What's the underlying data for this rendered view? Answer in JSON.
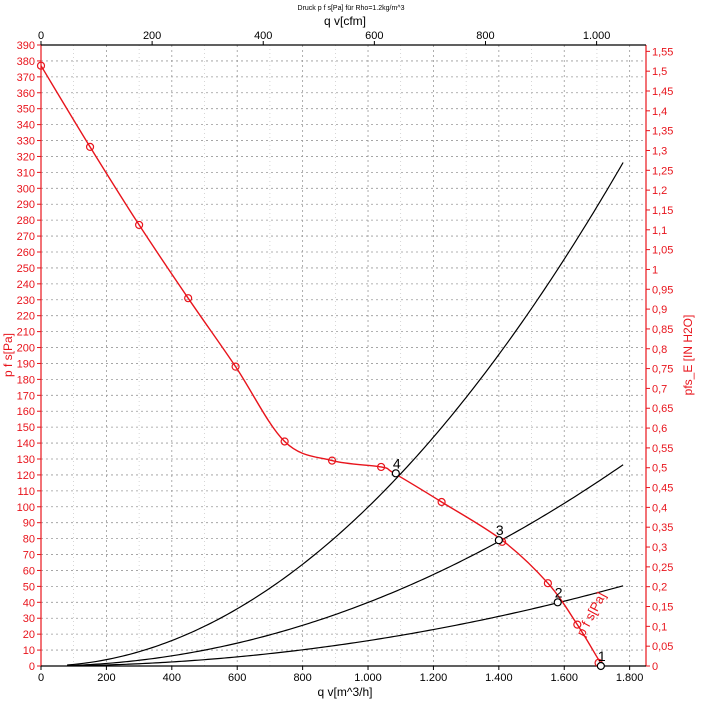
{
  "colors": {
    "primary": "#e8141c",
    "system": "#000000",
    "grid": "#999999",
    "background": "#ffffff"
  },
  "chart_data": {
    "type": "line",
    "title": "Druck p f s[Pa] für Rho=1.2kg/m^3",
    "xlabel": "q v[m^3/h]",
    "x2label": "q v[cfm]",
    "ylabel": "p  f  s[Pa]",
    "y2label": "pfs_E [IN H2O]",
    "xlim": [
      0,
      1850
    ],
    "ylim": [
      0,
      390
    ],
    "x2lim": [
      0,
      1088.9
    ],
    "y2lim": [
      0,
      1.566
    ],
    "grid": true,
    "x_ticks": [
      {
        "v": 0,
        "t": "0"
      },
      {
        "v": 200,
        "t": "200"
      },
      {
        "v": 400,
        "t": "400"
      },
      {
        "v": 600,
        "t": "600"
      },
      {
        "v": 800,
        "t": "800"
      },
      {
        "v": 1000,
        "t": "1.000"
      },
      {
        "v": 1200,
        "t": "1.200"
      },
      {
        "v": 1400,
        "t": "1.400"
      },
      {
        "v": 1600,
        "t": "1.600"
      },
      {
        "v": 1800,
        "t": "1.800"
      }
    ],
    "x2_ticks": [
      {
        "v": 0,
        "t": "0"
      },
      {
        "v": 200,
        "t": "200"
      },
      {
        "v": 400,
        "t": "400"
      },
      {
        "v": 600,
        "t": "600"
      },
      {
        "v": 800,
        "t": "800"
      },
      {
        "v": 1000,
        "t": "1.000"
      }
    ],
    "y_ticks": [
      "0",
      "10",
      "20",
      "30",
      "40",
      "50",
      "60",
      "70",
      "80",
      "90",
      "100",
      "110",
      "120",
      "130",
      "140",
      "150",
      "160",
      "170",
      "180",
      "190",
      "200",
      "210",
      "220",
      "230",
      "240",
      "250",
      "260",
      "270",
      "280",
      "290",
      "300",
      "310",
      "320",
      "330",
      "340",
      "350",
      "360",
      "370",
      "380",
      "390"
    ],
    "y2_ticks": [
      "0",
      "0,05",
      "0,1",
      "0,15",
      "0,2",
      "0,25",
      "0,3",
      "0,35",
      "0,4",
      "0,45",
      "0,5",
      "0,55",
      "0,6",
      "0,65",
      "0,7",
      "0,75",
      "0,8",
      "0,85",
      "0,9",
      "0,95",
      "1",
      "1,05",
      "1,1",
      "1,15",
      "1,2",
      "1,25",
      "1,3",
      "1,35",
      "1,4",
      "1,45",
      "1,5",
      "1,55"
    ],
    "fan_curve": {
      "name": "p  f  s[Pa]",
      "points": [
        [
          0,
          377
        ],
        [
          150,
          326
        ],
        [
          300,
          277
        ],
        [
          450,
          231
        ],
        [
          595,
          188
        ],
        [
          745,
          141
        ],
        [
          890,
          129
        ],
        [
          1040,
          125
        ],
        [
          1080,
          121
        ],
        [
          1225,
          103
        ],
        [
          1410,
          79
        ],
        [
          1550,
          52
        ],
        [
          1640,
          26
        ],
        [
          1705,
          4
        ],
        [
          1720,
          0
        ]
      ],
      "markers": [
        [
          0,
          377
        ],
        [
          150,
          326
        ],
        [
          300,
          277
        ],
        [
          450,
          231
        ],
        [
          595,
          188
        ],
        [
          745,
          141
        ],
        [
          890,
          129
        ],
        [
          1040,
          125
        ],
        [
          1225,
          103
        ],
        [
          1410,
          78
        ],
        [
          1550,
          52
        ],
        [
          1640,
          26
        ],
        [
          1705,
          2
        ]
      ]
    },
    "system_curves": [
      {
        "k": 9.98e-05,
        "x_end": 1780
      },
      {
        "k": 3.99e-05,
        "x_end": 1780
      },
      {
        "k": 1.59e-05,
        "x_end": 1780
      }
    ],
    "operating_points": [
      {
        "label": "1",
        "x": 1712,
        "y": 0
      },
      {
        "label": "2",
        "x": 1580,
        "y": 40
      },
      {
        "label": "3",
        "x": 1400,
        "y": 79
      },
      {
        "label": "4",
        "x": 1085,
        "y": 121
      }
    ]
  }
}
